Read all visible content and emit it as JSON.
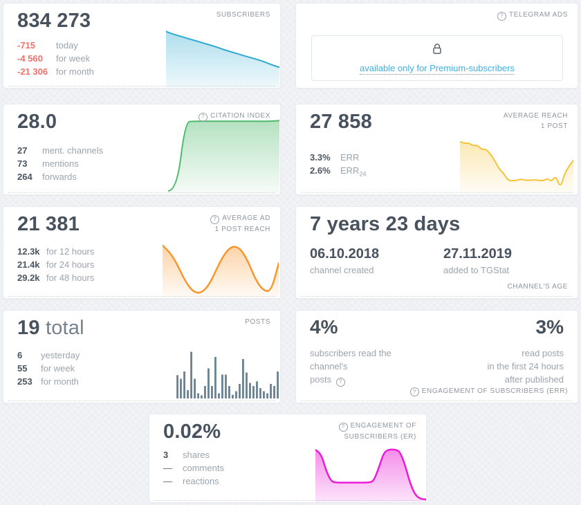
{
  "icons": {
    "info": "?"
  },
  "colors": {
    "subscribers_line": "#2ca9d2",
    "citation_line": "#4db96a",
    "reach_line": "#f5c337",
    "ad_reach_line": "#f8962d",
    "posts_bars": "#6d8494",
    "er_line": "#ea1bd6",
    "negative_value": "#f3716a",
    "premium_link": "#3fb0e5"
  },
  "cards": {
    "subscribers": {
      "header": "SUBSCRIBERS",
      "value": "834 273",
      "stats": [
        {
          "value": "-715",
          "label": "today"
        },
        {
          "value": "-4 560",
          "label": "for week"
        },
        {
          "value": "-21 306",
          "label": "for month"
        }
      ]
    },
    "telegram_ads": {
      "header": "TELEGRAM ADS",
      "locked_link": "available only for Premium-subscribers"
    },
    "citation": {
      "header": "CITATION INDEX",
      "value": "28.0",
      "stats": [
        {
          "value": "27",
          "label": "ment. channels"
        },
        {
          "value": "73",
          "label": "mentions"
        },
        {
          "value": "264",
          "label": "forwards"
        }
      ]
    },
    "reach": {
      "header_line1": "AVERAGE REACH",
      "header_line2": "1 POST",
      "value": "27 858",
      "stats": [
        {
          "value": "3.3%",
          "label": "ERR",
          "label_sub": ""
        },
        {
          "value": "2.6%",
          "label": "ERR",
          "label_sub": "24"
        }
      ]
    },
    "ad_reach": {
      "header_line1": "AVERAGE AD",
      "header_line2": "1 POST REACH",
      "value": "21 381",
      "stats": [
        {
          "value": "12.3k",
          "label": "for 12 hours"
        },
        {
          "value": "21.4k",
          "label": "for 24 hours"
        },
        {
          "value": "29.2k",
          "label": "for 48 hours"
        }
      ]
    },
    "age": {
      "value": "7 years 23 days",
      "created_date": "06.10.2018",
      "created_label": "channel created",
      "added_date": "27.11.2019",
      "added_label": "added to TGStat",
      "footer": "CHANNEL'S AGE"
    },
    "posts": {
      "header": "POSTS",
      "value": "19",
      "value_suffix": "total",
      "stats": [
        {
          "value": "6",
          "label": "yesterday"
        },
        {
          "value": "55",
          "label": "for week"
        },
        {
          "value": "253",
          "label": "for month"
        }
      ]
    },
    "err": {
      "left_value": "4%",
      "left_label_line1": "subscribers read the channel's",
      "left_label_line2": "posts",
      "right_value": "3%",
      "right_label_line1": "read posts",
      "right_label_line2": "in the first 24 hours",
      "right_label_line3": "after published",
      "footer": "ENGAGEMENT OF SUBSCRIBERS (ERR)"
    },
    "er": {
      "header_line1": "ENGAGEMENT OF",
      "header_line2": "SUBSCRIBERS (ER)",
      "value": "0.02%",
      "stats": [
        {
          "value": "3",
          "label": "shares"
        },
        {
          "value": "—",
          "label": "comments"
        },
        {
          "value": "—",
          "label": "reactions"
        }
      ]
    }
  },
  "chart_data": {
    "subscribers": {
      "type": "area",
      "label": "subscribers trend (declining)",
      "color": "#2ca9d2",
      "stroke_width": 2,
      "fill_opacity_top": 0.38,
      "fill_opacity_bottom": 0.08,
      "values": [
        97,
        93,
        90,
        87,
        84,
        81,
        78,
        75,
        72,
        69,
        65,
        62,
        59,
        56,
        53,
        50,
        47,
        44,
        40,
        36,
        33
      ]
    },
    "citation": {
      "type": "area",
      "label": "citation index trend (step up then flat)",
      "color": "#4db96a",
      "stroke_width": 2,
      "fill_opacity_top": 0.42,
      "fill_opacity_bottom": 0.05,
      "values": [
        2,
        2,
        95,
        96,
        96,
        96,
        96,
        96,
        96,
        96,
        96,
        96,
        96,
        97
      ]
    },
    "reach": {
      "type": "area",
      "label": "average reach trend (falling then spike)",
      "color": "#f5c337",
      "stroke_width": 2,
      "fill_opacity_top": 0.38,
      "fill_opacity_bottom": 0.04,
      "values": [
        88,
        85,
        86,
        81,
        82,
        74,
        75,
        66,
        54,
        40,
        32,
        20,
        19,
        20,
        22,
        20,
        20,
        21,
        20,
        19,
        23,
        18,
        28,
        6,
        32,
        45,
        55
      ]
    },
    "ad_reach": {
      "type": "area",
      "label": "average ad post reach (wave)",
      "color": "#f8962d",
      "stroke_width": 2.5,
      "fill_opacity_top": 0.42,
      "fill_opacity_bottom": 0.04,
      "values": [
        93,
        80,
        55,
        25,
        7,
        5,
        20,
        50,
        78,
        92,
        88,
        65,
        30,
        10,
        8,
        60
      ]
    },
    "posts": {
      "type": "bar",
      "label": "posts per day",
      "color": "#6d8494",
      "values": [
        45,
        38,
        52,
        16,
        90,
        38,
        10,
        6,
        24,
        58,
        24,
        80,
        10,
        46,
        46,
        24,
        7,
        14,
        28,
        76,
        50,
        30,
        24,
        33,
        20,
        14,
        10,
        28,
        24,
        52
      ]
    },
    "er": {
      "type": "area",
      "label": "engagement rate trend (two plateaus)",
      "color": "#ea1bd6",
      "stroke_width": 2.5,
      "fill_opacity_top": 0.5,
      "fill_opacity_bottom": 0.12,
      "values": [
        92,
        88,
        55,
        34,
        32,
        32,
        32,
        32,
        32,
        32,
        32,
        34,
        58,
        88,
        93,
        93,
        90,
        65,
        30,
        8,
        2,
        1
      ]
    }
  }
}
